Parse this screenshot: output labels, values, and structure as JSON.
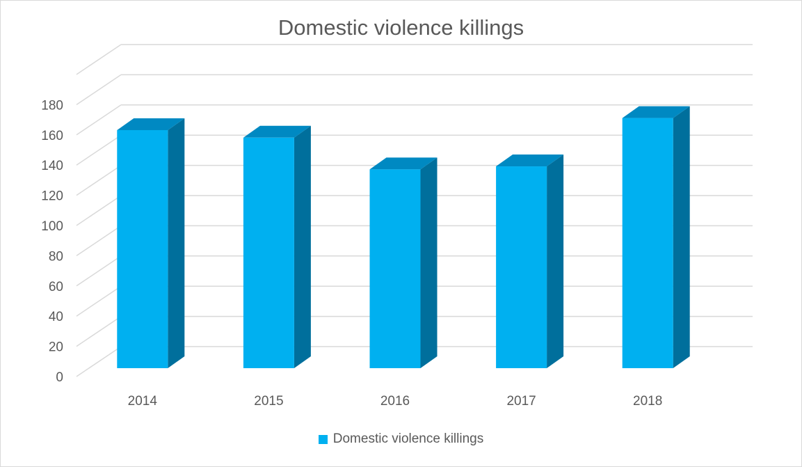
{
  "chart_data": {
    "type": "bar",
    "title": "Domestic violence killings",
    "categories": [
      "2014",
      "2015",
      "2016",
      "2017",
      "2018"
    ],
    "series": [
      {
        "name": "Domestic violence killings",
        "values": [
          165,
          160,
          139,
          141,
          173
        ]
      }
    ],
    "ylim": [
      0,
      200
    ],
    "yticks": [
      "0",
      "20",
      "40",
      "60",
      "80",
      "100",
      "120",
      "140",
      "160",
      "180"
    ],
    "grid": true,
    "legend_position": "bottom",
    "colors": {
      "front": "#00b0f0",
      "top": "#0089c2",
      "side": "#006f9c",
      "grid": "#d9d9d9"
    }
  }
}
